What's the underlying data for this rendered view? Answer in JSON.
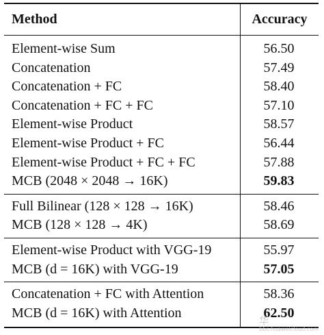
{
  "table": {
    "header": {
      "method": "Method",
      "accuracy": "Accuracy"
    },
    "groups": [
      [
        {
          "method": "Element-wise Sum",
          "accuracy": "56.50"
        },
        {
          "method": "Concatenation",
          "accuracy": "57.49"
        },
        {
          "method": "Concatenation + FC",
          "accuracy": "58.40"
        },
        {
          "method": "Concatenation + FC + FC",
          "accuracy": "57.10"
        },
        {
          "method": "Element-wise Product",
          "accuracy": "58.57"
        },
        {
          "method": "Element-wise Product + FC",
          "accuracy": "56.44"
        },
        {
          "method": "Element-wise Product + FC + FC",
          "accuracy": "57.88"
        },
        {
          "method": "MCB (2048 × 2048 → 16K)",
          "accuracy": "59.83"
        }
      ],
      [
        {
          "method": "Full Bilinear (128 × 128 → 16K)",
          "accuracy": "58.46"
        },
        {
          "method": "MCB (128 × 128 → 4K)",
          "accuracy": "58.69"
        }
      ],
      [
        {
          "method": "Element-wise Product with VGG-19",
          "accuracy": "55.97"
        },
        {
          "method": "MCB (d = 16K) with VGG-19",
          "accuracy": "57.05"
        }
      ],
      [
        {
          "method": "Concatenation + FC with Attention",
          "accuracy": "58.36"
        },
        {
          "method": "MCB (d = 16K) with Attention",
          "accuracy": "62.50"
        }
      ]
    ]
  },
  "watermark": {
    "text": "华",
    "subtext": "bbs.huaweicloud.com"
  }
}
